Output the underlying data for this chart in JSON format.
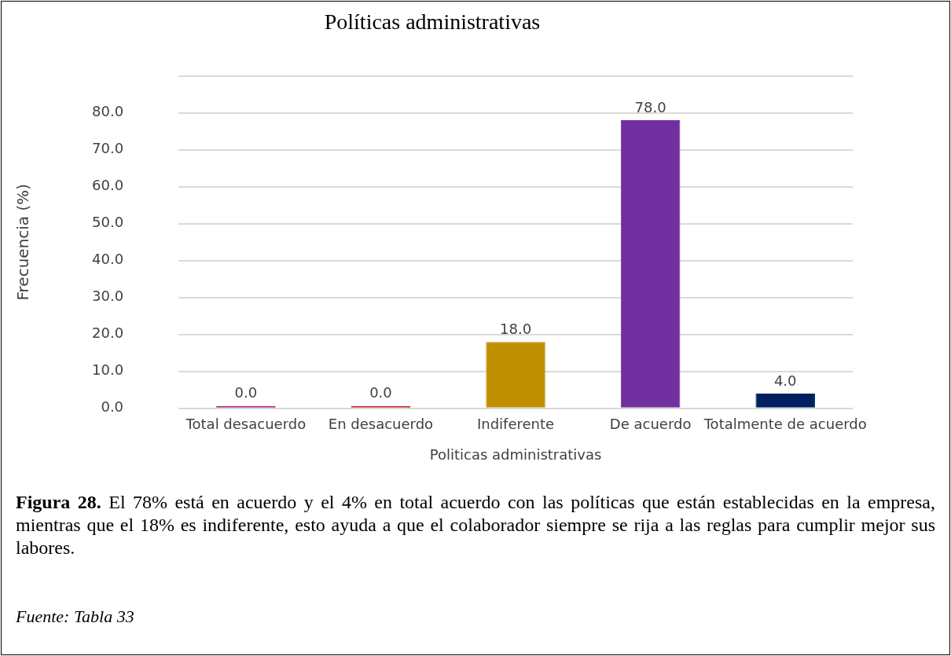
{
  "chart_data": {
    "type": "bar",
    "title": "Políticas administrativas",
    "xlabel": "Politicas administrativas",
    "ylabel": "Frecuencia (%)",
    "categories": [
      "Total desacuerdo",
      "En desacuerdo",
      "Indiferente",
      "De acuerdo",
      "Totalmente de acuerdo"
    ],
    "values": [
      0,
      0,
      18,
      78,
      4
    ],
    "colors": [
      "#a5006e",
      "#c00000",
      "#bf8f00",
      "#7030a0",
      "#002060"
    ],
    "value_labels": [
      "0.0",
      "0.0",
      "18.0",
      "78.0",
      "4.0"
    ],
    "ylim": [
      0,
      90
    ],
    "yticks": [
      {
        "value": 0,
        "label": "0.0"
      },
      {
        "value": 10,
        "label": "10.0"
      },
      {
        "value": 20,
        "label": "20.0"
      },
      {
        "value": 30,
        "label": "30.0"
      },
      {
        "value": 40,
        "label": "40.0"
      },
      {
        "value": 50,
        "label": "50.0"
      },
      {
        "value": 60,
        "label": "60.0"
      },
      {
        "value": 70,
        "label": "70.0"
      },
      {
        "value": 80,
        "label": "80.0"
      },
      {
        "value": 90,
        "label": null
      }
    ],
    "grid": "y",
    "legend": false,
    "annotations": [
      "Figura 28. El 78% está en acuerdo y el 4% en total acuerdo con las políticas que están establecidas en la empresa, mientras que el 18% es indiferente, esto ayuda a que el colaborador siempre se rija a las reglas para cumplir mejor sus labores.",
      "Fuente: Tabla 33"
    ]
  }
}
